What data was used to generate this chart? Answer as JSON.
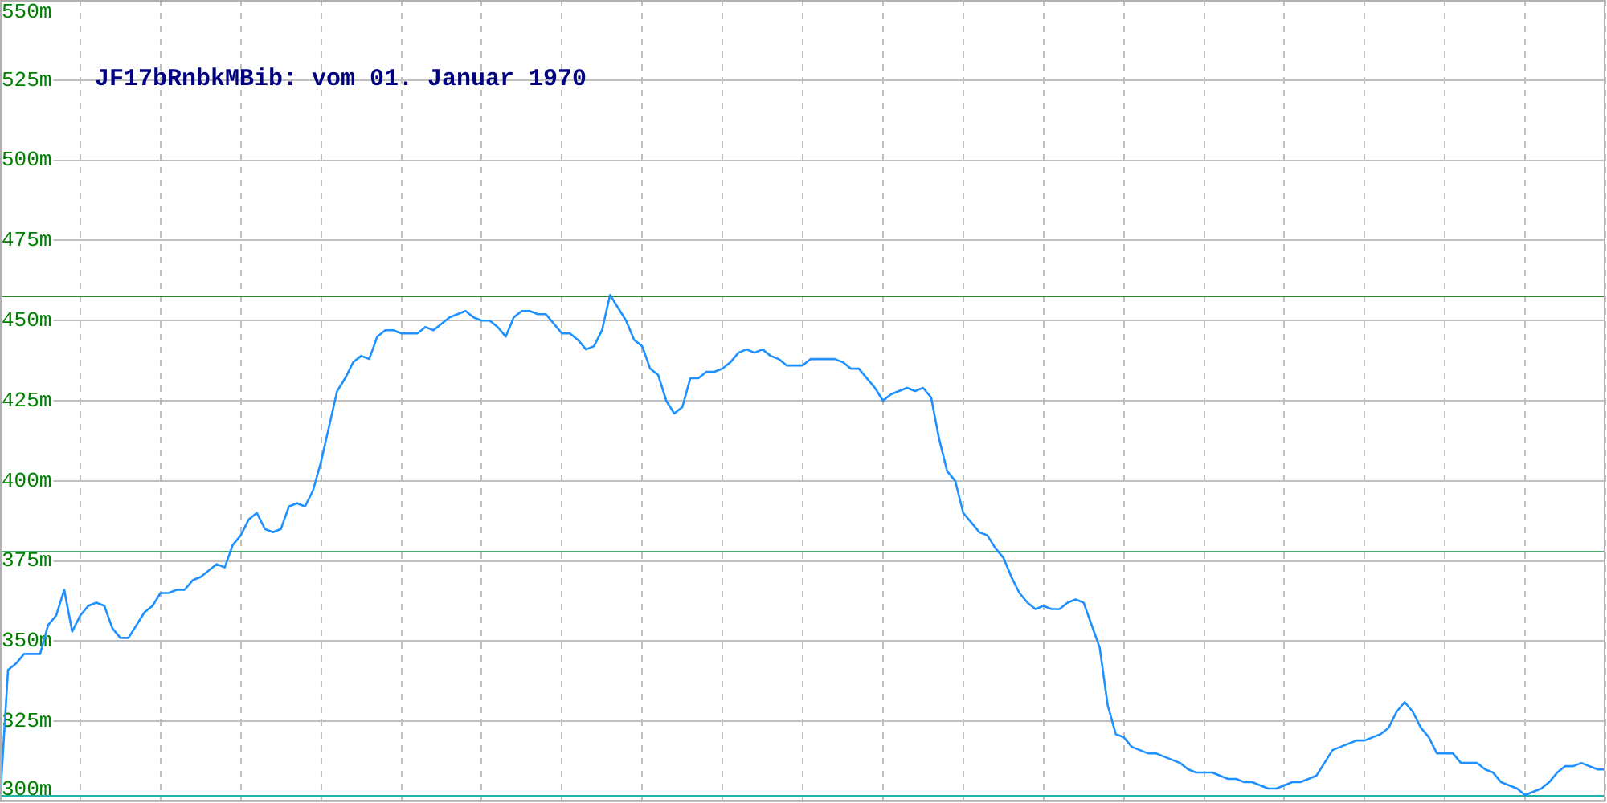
{
  "chart_data": {
    "type": "line",
    "title": "JF17bRnbkMBib: vom 01. Januar 1970",
    "categories": [
      null,
      null,
      null,
      null,
      null,
      null,
      null,
      null,
      null,
      null,
      null,
      null,
      null,
      null,
      null,
      null,
      null,
      null,
      null,
      null,
      null,
      null,
      null,
      null,
      null,
      null,
      null,
      null,
      null,
      null,
      null,
      null,
      null,
      null,
      null,
      null,
      null,
      null,
      null,
      null,
      null,
      null,
      null,
      null,
      null,
      null,
      null,
      null,
      null,
      null,
      null,
      null,
      null,
      null,
      null,
      null,
      null,
      null,
      null,
      null,
      null,
      null,
      null,
      null,
      null,
      null,
      null,
      null,
      null,
      null,
      null,
      null,
      null,
      null,
      null,
      null,
      null,
      null,
      null,
      null,
      null,
      null,
      null,
      null,
      null,
      null,
      null,
      null,
      null,
      null,
      null,
      null,
      null,
      null,
      null,
      null,
      null,
      null,
      null,
      null,
      null,
      null,
      null,
      null,
      null,
      null,
      null,
      null,
      null,
      null,
      null,
      null,
      null,
      null,
      null,
      null,
      null,
      null,
      null,
      null,
      null,
      null,
      null,
      null,
      null,
      null,
      null,
      null,
      null,
      null,
      null,
      null,
      null,
      null,
      null,
      null,
      null,
      null,
      null,
      null,
      null,
      null,
      null,
      null,
      null,
      null,
      null,
      null,
      null,
      null,
      null,
      null,
      null,
      null,
      null,
      null,
      null,
      null,
      null,
      null,
      null,
      null,
      null,
      null,
      null,
      null,
      null,
      null,
      null,
      null,
      null,
      null,
      null,
      null,
      null,
      null,
      null,
      null,
      null,
      null,
      null,
      null,
      null,
      null,
      null,
      null,
      null,
      null,
      null,
      null,
      null,
      null,
      null,
      null,
      null,
      null,
      null,
      null,
      null,
      null,
      null
    ],
    "values": [
      300,
      341,
      343,
      346,
      346,
      346,
      355,
      358,
      366,
      353,
      358,
      361,
      362,
      361,
      354,
      351,
      351,
      355,
      359,
      361,
      365,
      365,
      366,
      366,
      369,
      370,
      372,
      374,
      373,
      380,
      383,
      388,
      390,
      385,
      384,
      385,
      392,
      393,
      392,
      397,
      406,
      417,
      428,
      432,
      437,
      439,
      438,
      445,
      447,
      447,
      446,
      446,
      446,
      448,
      447,
      449,
      451,
      452,
      453,
      451,
      450,
      450,
      448,
      445,
      451,
      453,
      453,
      452,
      452,
      449,
      446,
      446,
      444,
      441,
      442,
      447,
      458,
      454,
      450,
      444,
      442,
      435,
      433,
      425,
      421,
      423,
      432,
      432,
      434,
      434,
      435,
      437,
      440,
      441,
      440,
      441,
      439,
      438,
      436,
      436,
      436,
      438,
      438,
      438,
      438,
      437,
      435,
      435,
      432,
      429,
      425,
      427,
      428,
      429,
      428,
      429,
      426,
      413,
      403,
      400,
      390,
      387,
      384,
      383,
      379,
      376,
      370,
      365,
      362,
      360,
      361,
      360,
      360,
      362,
      363,
      362,
      355,
      348,
      330,
      321,
      320,
      317,
      316,
      315,
      315,
      314,
      313,
      312,
      310,
      309,
      309,
      309,
      308,
      307,
      307,
      306,
      306,
      305,
      304,
      304,
      305,
      306,
      306,
      307,
      308,
      312,
      316,
      317,
      318,
      319,
      319,
      320,
      321,
      323,
      328,
      331,
      328,
      323,
      320,
      315,
      315,
      315,
      312,
      312,
      312,
      310,
      309,
      306,
      305,
      304,
      302,
      303,
      304,
      306,
      309,
      311,
      311,
      312,
      311,
      310,
      310
    ],
    "color": "#1e90ff",
    "ylim": [
      300,
      550
    ],
    "yticks": [
      {
        "value": 300,
        "label": "300m"
      },
      {
        "value": 325,
        "label": "325m"
      },
      {
        "value": 350,
        "label": "350m"
      },
      {
        "value": 375,
        "label": "375m"
      },
      {
        "value": 400,
        "label": "400m"
      },
      {
        "value": 425,
        "label": "425m"
      },
      {
        "value": 450,
        "label": "450m"
      },
      {
        "value": 475,
        "label": "475m"
      },
      {
        "value": 500,
        "label": "500m"
      },
      {
        "value": 525,
        "label": "525m"
      },
      {
        "value": 550,
        "label": "550m"
      }
    ],
    "grid": true,
    "ref_lines": [
      {
        "axis": "y",
        "value": 458,
        "color": "#228b22"
      },
      {
        "axis": "y",
        "value": 378,
        "color": "#3cb371"
      },
      {
        "axis": "y",
        "value": 302,
        "color": "#20b2aa"
      }
    ]
  }
}
